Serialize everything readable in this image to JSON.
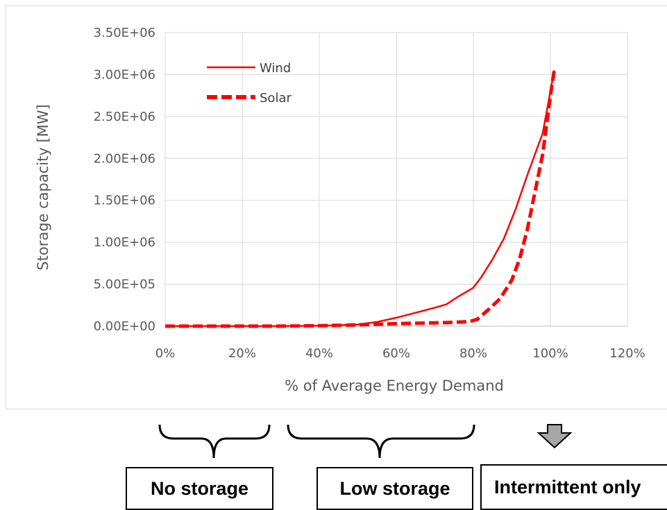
{
  "chart_data": {
    "type": "line",
    "xlabel": "% of Average Energy Demand",
    "ylabel": "Storage capacity [MW]",
    "xlim": [
      0,
      1.2
    ],
    "ylim": [
      0,
      3500000
    ],
    "x_tick_labels": [
      "0%",
      "20%",
      "40%",
      "60%",
      "80%",
      "100%",
      "120%"
    ],
    "y_tick_labels": [
      "0.00E+00",
      "5.00E+05",
      "1.00E+06",
      "1.50E+06",
      "2.00E+06",
      "2.50E+06",
      "3.00E+06",
      "3.50E+06"
    ],
    "grid": "vertical and horizontal",
    "legend_position": "top-left",
    "series": [
      {
        "name": "Wind",
        "style": "solid",
        "color": "#ff0000",
        "x": [
          0.0,
          0.1,
          0.2,
          0.3,
          0.4,
          0.45,
          0.5,
          0.55,
          0.6,
          0.65,
          0.7,
          0.73,
          0.76,
          0.79,
          0.8,
          0.82,
          0.85,
          0.88,
          0.91,
          0.94,
          0.96,
          0.98,
          1.0,
          1.01
        ],
        "y": [
          0,
          0,
          0,
          0,
          5000,
          10000,
          20000,
          50000,
          100000,
          160000,
          220000,
          260000,
          350000,
          430000,
          460000,
          580000,
          800000,
          1050000,
          1400000,
          1800000,
          2050000,
          2300000,
          2800000,
          3050000
        ]
      },
      {
        "name": "Solar",
        "style": "dashed",
        "color": "#ff0000",
        "x": [
          0.0,
          0.1,
          0.2,
          0.3,
          0.4,
          0.5,
          0.6,
          0.7,
          0.75,
          0.79,
          0.81,
          0.84,
          0.87,
          0.9,
          0.92,
          0.94,
          0.96,
          0.98,
          0.99,
          1.0,
          1.01
        ],
        "y": [
          0,
          0,
          0,
          0,
          5000,
          15000,
          30000,
          40000,
          45000,
          55000,
          80000,
          200000,
          330000,
          550000,
          800000,
          1150000,
          1600000,
          2050000,
          2400000,
          2750000,
          3050000
        ]
      }
    ]
  },
  "annotations": {
    "no_storage": "No storage",
    "low_storage": "Low storage",
    "intermittent_only": "Intermittent only"
  }
}
